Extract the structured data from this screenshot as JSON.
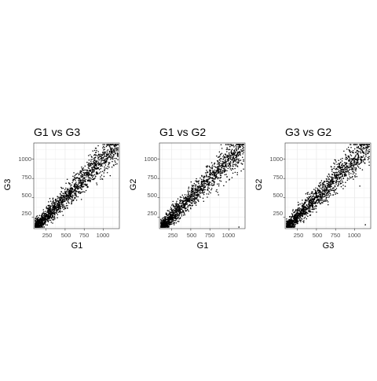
{
  "chart_data": [
    {
      "type": "scatter",
      "title": "G1 vs G3",
      "xlabel": "G1",
      "ylabel": "G3",
      "xlim": [
        90,
        1210
      ],
      "ylim": [
        100,
        1210
      ],
      "xticks": [
        "250",
        "500",
        "750",
        "1000"
      ],
      "yticks": [
        "250",
        "500",
        "750",
        "1000"
      ],
      "grid": true,
      "point_count": 1500,
      "points_sample": [
        [
          130,
          185
        ],
        [
          160,
          150
        ],
        [
          200,
          230
        ],
        [
          220,
          205
        ],
        [
          250,
          260
        ],
        [
          280,
          270
        ],
        [
          300,
          320
        ],
        [
          320,
          300
        ],
        [
          350,
          380
        ],
        [
          380,
          340
        ],
        [
          400,
          420
        ],
        [
          420,
          450
        ],
        [
          450,
          430
        ],
        [
          480,
          520
        ],
        [
          500,
          500
        ],
        [
          520,
          470
        ],
        [
          550,
          580
        ],
        [
          580,
          620
        ],
        [
          600,
          610
        ],
        [
          620,
          560
        ],
        [
          650,
          640
        ],
        [
          680,
          700
        ],
        [
          700,
          730
        ],
        [
          720,
          680
        ],
        [
          750,
          760
        ],
        [
          780,
          800
        ],
        [
          800,
          790
        ],
        [
          820,
          850
        ],
        [
          850,
          830
        ],
        [
          880,
          900
        ],
        [
          900,
          920
        ],
        [
          920,
          880
        ],
        [
          950,
          940
        ],
        [
          980,
          1000
        ],
        [
          1000,
          1020
        ],
        [
          1020,
          990
        ],
        [
          1050,
          1060
        ],
        [
          1080,
          1090
        ],
        [
          1100,
          1120
        ],
        [
          1120,
          1080
        ],
        [
          1150,
          1160
        ],
        [
          1170,
          1175
        ]
      ]
    },
    {
      "type": "scatter",
      "title": "G1 vs G2",
      "xlabel": "G1",
      "ylabel": "G2",
      "xlim": [
        90,
        1210
      ],
      "ylim": [
        100,
        1210
      ],
      "xticks": [
        "250",
        "500",
        "750",
        "1000"
      ],
      "yticks": [
        "250",
        "500",
        "750",
        "1000"
      ],
      "grid": true,
      "point_count": 1500,
      "points_sample": [
        [
          130,
          175
        ],
        [
          160,
          150
        ],
        [
          200,
          215
        ],
        [
          220,
          240
        ],
        [
          250,
          250
        ],
        [
          280,
          300
        ],
        [
          300,
          285
        ],
        [
          320,
          330
        ],
        [
          350,
          360
        ],
        [
          380,
          390
        ],
        [
          400,
          410
        ],
        [
          420,
          400
        ],
        [
          450,
          460
        ],
        [
          480,
          490
        ],
        [
          500,
          520
        ],
        [
          520,
          510
        ],
        [
          550,
          560
        ],
        [
          580,
          570
        ],
        [
          600,
          630
        ],
        [
          620,
          600
        ],
        [
          650,
          660
        ],
        [
          680,
          690
        ],
        [
          700,
          720
        ],
        [
          720,
          700
        ],
        [
          750,
          770
        ],
        [
          780,
          760
        ],
        [
          800,
          820
        ],
        [
          820,
          830
        ],
        [
          850,
          860
        ],
        [
          880,
          870
        ],
        [
          900,
          920
        ],
        [
          920,
          910
        ],
        [
          950,
          960
        ],
        [
          980,
          990
        ],
        [
          1000,
          1010
        ],
        [
          1020,
          1040
        ],
        [
          1050,
          1060
        ],
        [
          1080,
          1080
        ],
        [
          1100,
          1110
        ],
        [
          1120,
          1130
        ],
        [
          1150,
          1160
        ],
        [
          1170,
          1180
        ],
        [
          1130,
          120
        ]
      ]
    },
    {
      "type": "scatter",
      "title": "G3 vs G2",
      "xlabel": "G3",
      "ylabel": "G2",
      "xlim": [
        90,
        1210
      ],
      "ylim": [
        100,
        1210
      ],
      "xticks": [
        "250",
        "500",
        "750",
        "1000"
      ],
      "yticks": [
        "250",
        "500",
        "750",
        "1000"
      ],
      "grid": true,
      "point_count": 1500,
      "points_sample": [
        [
          130,
          190
        ],
        [
          160,
          160
        ],
        [
          200,
          230
        ],
        [
          220,
          210
        ],
        [
          250,
          270
        ],
        [
          280,
          280
        ],
        [
          300,
          310
        ],
        [
          320,
          290
        ],
        [
          350,
          370
        ],
        [
          380,
          360
        ],
        [
          400,
          420
        ],
        [
          420,
          440
        ],
        [
          450,
          440
        ],
        [
          480,
          500
        ],
        [
          500,
          510
        ],
        [
          520,
          480
        ],
        [
          550,
          570
        ],
        [
          580,
          600
        ],
        [
          600,
          600
        ],
        [
          620,
          570
        ],
        [
          650,
          650
        ],
        [
          680,
          690
        ],
        [
          700,
          720
        ],
        [
          720,
          690
        ],
        [
          750,
          760
        ],
        [
          780,
          790
        ],
        [
          800,
          800
        ],
        [
          820,
          840
        ],
        [
          850,
          840
        ],
        [
          880,
          890
        ],
        [
          900,
          910
        ],
        [
          920,
          890
        ],
        [
          950,
          950
        ],
        [
          980,
          990
        ],
        [
          1000,
          1010
        ],
        [
          1020,
          1000
        ],
        [
          1050,
          1050
        ],
        [
          1080,
          1080
        ],
        [
          1100,
          1110
        ],
        [
          1120,
          1090
        ],
        [
          1150,
          1150
        ],
        [
          1170,
          1170
        ],
        [
          1140,
          150
        ]
      ]
    }
  ]
}
